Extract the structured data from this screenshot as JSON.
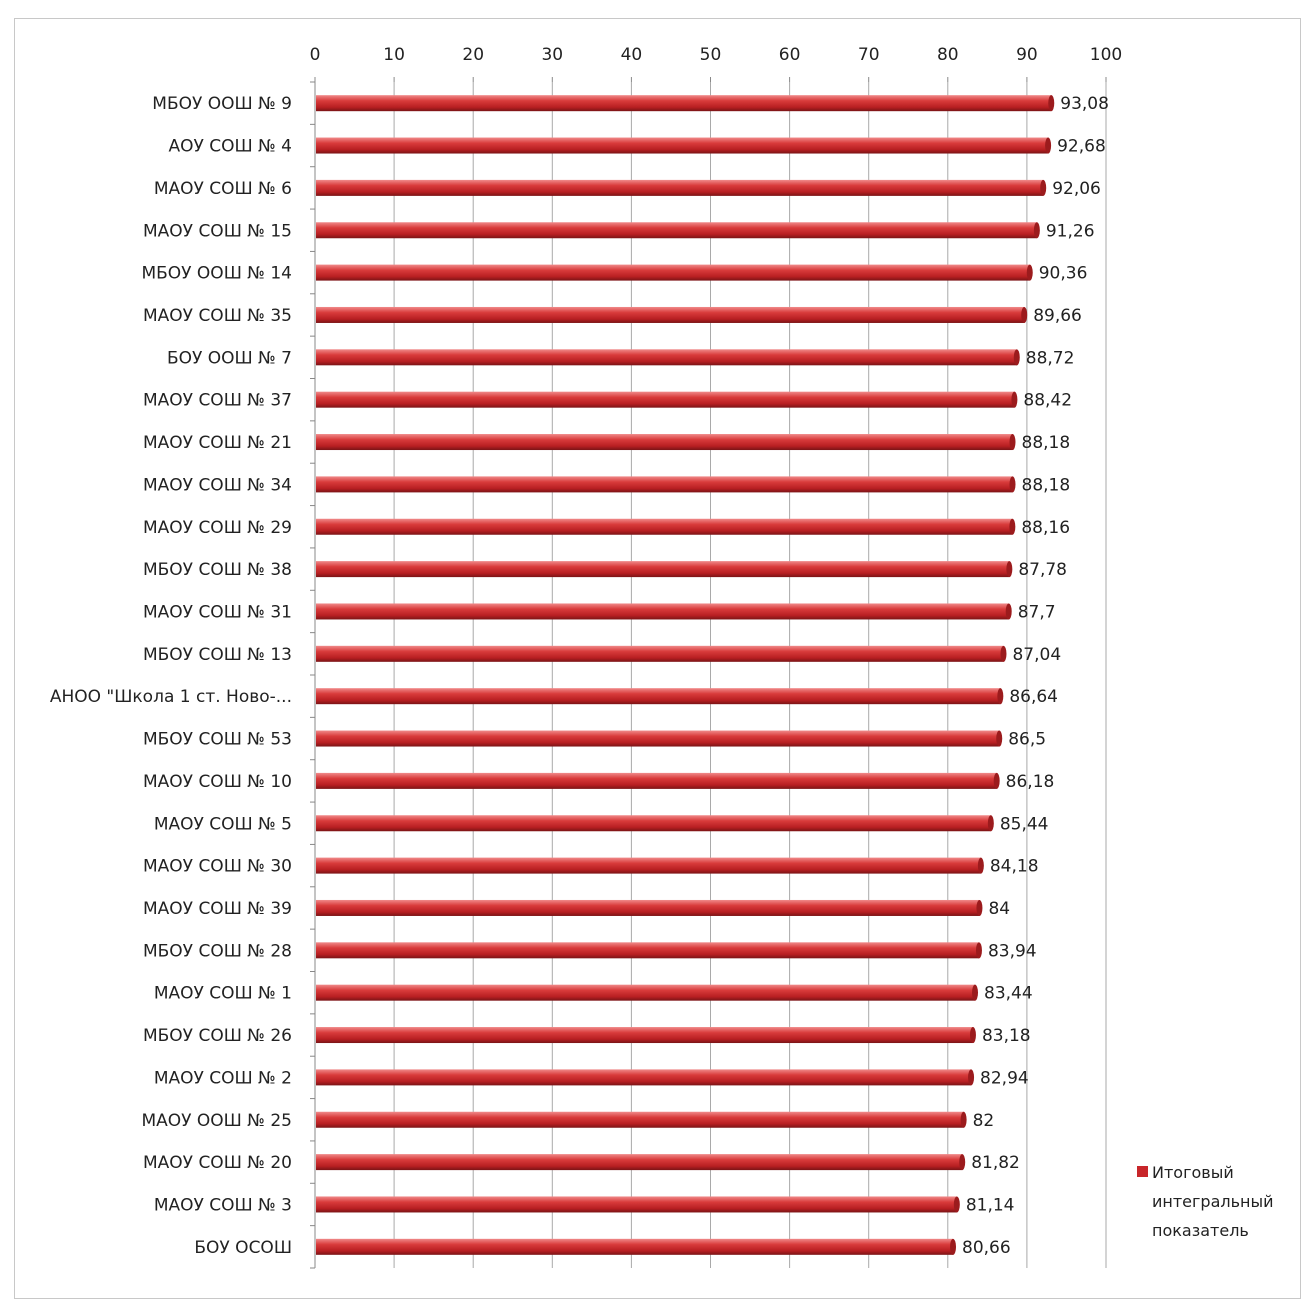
{
  "chart_data": {
    "type": "bar",
    "orientation": "horizontal",
    "xlim": [
      0,
      100
    ],
    "x_ticks": [
      "0",
      "10",
      "20",
      "30",
      "40",
      "50",
      "60",
      "70",
      "80",
      "90",
      "100"
    ],
    "grid": true,
    "categories": [
      "МБОУ ООШ № 9",
      "АОУ СОШ № 4",
      "МАОУ СОШ № 6",
      "МАОУ СОШ № 15",
      "МБОУ ООШ № 14",
      "МАОУ СОШ № 35",
      "БОУ ООШ № 7",
      "МАОУ СОШ № 37",
      "МАОУ СОШ № 21",
      "МАОУ СОШ № 34",
      "МАОУ СОШ № 29",
      "МБОУ СОШ № 38",
      "МАОУ СОШ № 31",
      "МБОУ СОШ № 13",
      "АНОО \"Школа 1 ст. Ново-...",
      "МБОУ СОШ № 53",
      "МАОУ СОШ № 10",
      "МАОУ СОШ № 5",
      "МАОУ СОШ № 30",
      "МАОУ СОШ № 39",
      "МБОУ СОШ № 28",
      "МАОУ СОШ № 1",
      "МБОУ СОШ № 26",
      "МАОУ СОШ № 2",
      "МАОУ ООШ № 25",
      "МАОУ СОШ № 20",
      "МАОУ СОШ № 3",
      "БОУ ОСОШ"
    ],
    "series": [
      {
        "name": "Итоговый интегральный показатель",
        "color": "#c8262a",
        "values": [
          93.08,
          92.68,
          92.06,
          91.26,
          90.36,
          89.66,
          88.72,
          88.42,
          88.18,
          88.18,
          88.16,
          87.78,
          87.7,
          87.04,
          86.64,
          86.5,
          86.18,
          85.44,
          84.18,
          84,
          83.94,
          83.44,
          83.18,
          82.94,
          82,
          81.82,
          81.14,
          80.66
        ],
        "labels": [
          "93,08",
          "92,68",
          "92,06",
          "91,26",
          "90,36",
          "89,66",
          "88,72",
          "88,42",
          "88,18",
          "88,18",
          "88,16",
          "87,78",
          "87,7",
          "87,04",
          "86,64",
          "86,5",
          "86,18",
          "85,44",
          "84,18",
          "84",
          "83,94",
          "83,44",
          "83,18",
          "82,94",
          "82",
          "81,82",
          "81,14",
          "80,66"
        ]
      }
    ],
    "legend": {
      "position": "right-bottom",
      "lines": [
        "Итоговый",
        "интегральный",
        "показатель"
      ]
    }
  }
}
